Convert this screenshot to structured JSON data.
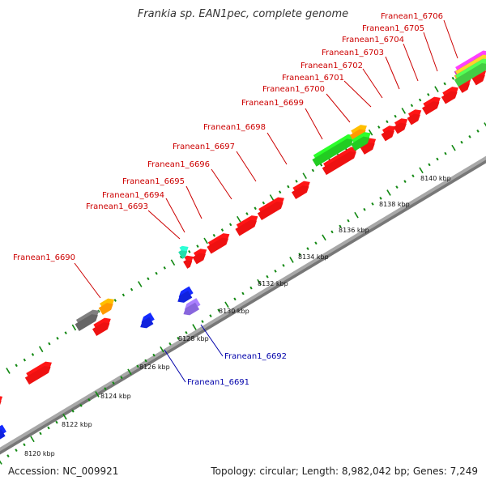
{
  "title": "Frankia sp. EAN1pec, complete genome",
  "footer": {
    "accession": "Accession: NC_009921",
    "summary": "Topology: circular; Length: 8,982,042 bp; Genes: 7,249"
  },
  "scale_labels": [
    "8120 kbp",
    "8122 kbp",
    "8124 kbp",
    "8126 kbp",
    "8128 kbp",
    "8130 kbp",
    "8132 kbp",
    "8134 kbp",
    "8136 kbp",
    "8138 kbp",
    "8140 kbp"
  ],
  "forward_gene_labels": [
    "Franean1_6690",
    "Franean1_6693",
    "Franean1_6694",
    "Franean1_6695",
    "Franean1_6696",
    "Franean1_6697",
    "Franean1_6698",
    "Franean1_6699",
    "Franean1_6700",
    "Franean1_6701",
    "Franean1_6702",
    "Franean1_6703",
    "Franean1_6704",
    "Franean1_6705",
    "Franean1_6706"
  ],
  "reverse_gene_labels": [
    "Franean1_6691",
    "Franean1_6692"
  ],
  "colors": {
    "forward_label": "#cc0000",
    "reverse_label": "#0000aa",
    "forward_gene": "#ee1111",
    "reverse_gene": "#1122dd",
    "backbone": "#a8a8a8",
    "tick": "#118811",
    "rna": "#22cc22",
    "orange": "#ff9900",
    "gray_gene": "#666666",
    "teal": "#22ddaa",
    "lavender": "#8866dd"
  }
}
